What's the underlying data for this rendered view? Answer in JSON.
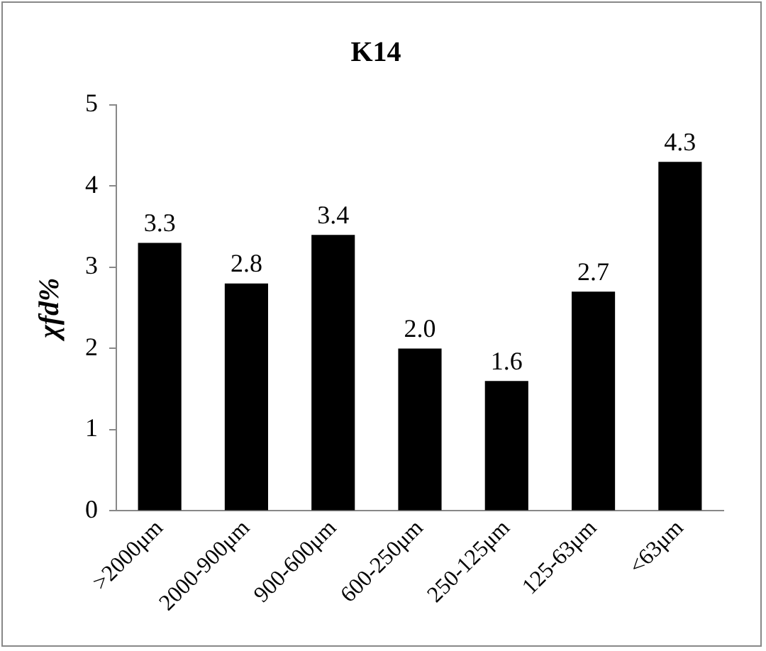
{
  "chart_data": {
    "type": "bar",
    "title": "K14",
    "ylabel": "χfd%",
    "categories": [
      ">2000μm",
      "2000-900μm",
      "900-600μm",
      "600-250μm",
      "250-125μm",
      "125-63μm",
      "<63μm"
    ],
    "values": [
      3.3,
      2.8,
      3.4,
      2.0,
      1.6,
      2.7,
      4.3
    ],
    "value_labels": [
      "3.3",
      "2.8",
      "3.4",
      "2.0",
      "1.6",
      "2.7",
      "4.3"
    ],
    "color": "#000000",
    "ylim": [
      0,
      5
    ],
    "yticks": [
      0,
      1,
      2,
      3,
      4,
      5
    ],
    "grid": false,
    "legend": false
  }
}
